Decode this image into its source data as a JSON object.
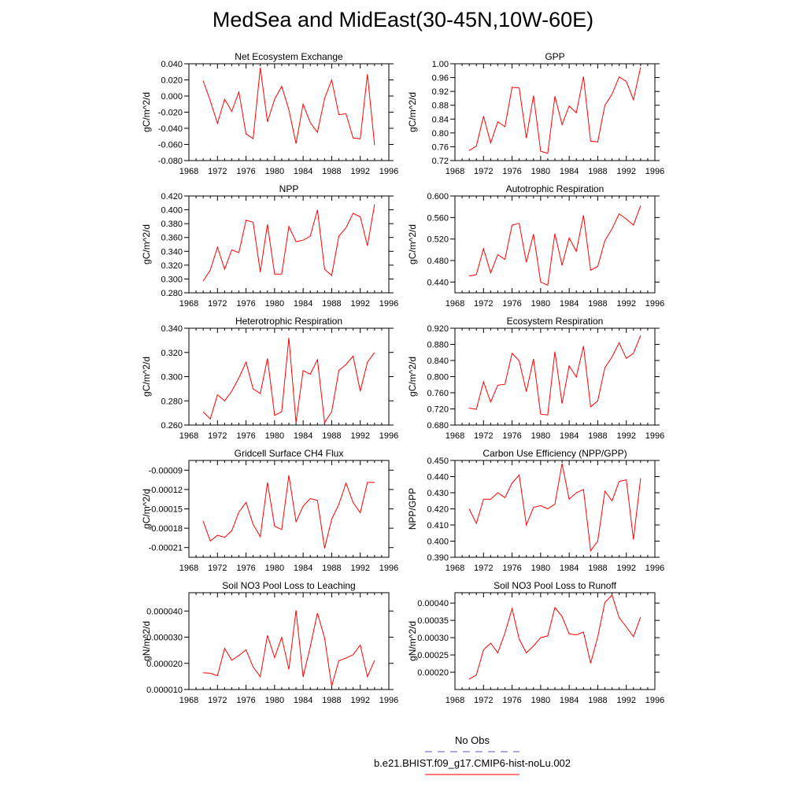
{
  "figure": {
    "title": "MedSea and MidEast(30-45N,10W-60E)",
    "legend": {
      "obs_label": "No Obs",
      "obs_color": "#5555cc",
      "model_label": "b.e21.BHIST.f09_g17.CMIP6-hist-noLu.002",
      "model_color": "#ff0000"
    }
  },
  "chart_data": [
    {
      "type": "line",
      "title": "Net Ecosystem Exchange",
      "ylabel": "gC/m^2/d",
      "xlim": [
        1968,
        1996
      ],
      "xticks": [
        1968,
        1972,
        1976,
        1980,
        1984,
        1988,
        1992,
        1996
      ],
      "xtick_labels": [
        "1968",
        "1972",
        "1976",
        "1980",
        "1984",
        "1988",
        "1992",
        "1996"
      ],
      "ylim": [
        -0.08,
        0.04
      ],
      "yticks": [
        -0.08,
        -0.06,
        -0.04,
        -0.02,
        0.0,
        0.02,
        0.04
      ],
      "ytick_labels": [
        "-0.080",
        "-0.060",
        "-0.040",
        "-0.020",
        "0.000",
        "0.020",
        "0.040"
      ],
      "x": [
        1970,
        1971,
        1972,
        1973,
        1974,
        1975,
        1976,
        1977,
        1978,
        1979,
        1980,
        1981,
        1982,
        1983,
        1984,
        1985,
        1986,
        1987,
        1988,
        1989,
        1990,
        1991,
        1992,
        1993,
        1994
      ],
      "series": [
        {
          "values": [
            0.019,
            -0.006,
            -0.034,
            -0.004,
            -0.019,
            0.005,
            -0.047,
            -0.053,
            0.035,
            -0.032,
            -0.004,
            0.012,
            -0.017,
            -0.059,
            -0.01,
            -0.033,
            -0.045,
            -0.003,
            0.02,
            -0.023,
            -0.022,
            -0.052,
            -0.053,
            0.027,
            -0.061
          ]
        }
      ]
    },
    {
      "type": "line",
      "title": "GPP",
      "ylabel": "gC/m^2/d",
      "xlim": [
        1968,
        1996
      ],
      "xticks": [
        1968,
        1972,
        1976,
        1980,
        1984,
        1988,
        1992,
        1996
      ],
      "xtick_labels": [
        "1968",
        "1972",
        "1976",
        "1980",
        "1984",
        "1988",
        "1992",
        "1996"
      ],
      "ylim": [
        0.72,
        1.0
      ],
      "yticks": [
        0.72,
        0.76,
        0.8,
        0.84,
        0.88,
        0.92,
        0.96,
        1.0
      ],
      "ytick_labels": [
        "0.72",
        "0.76",
        "0.80",
        "0.84",
        "0.88",
        "0.92",
        "0.96",
        "1.00"
      ],
      "x": [
        1970,
        1971,
        1972,
        1973,
        1974,
        1975,
        1976,
        1977,
        1978,
        1979,
        1980,
        1981,
        1982,
        1983,
        1984,
        1985,
        1986,
        1987,
        1988,
        1989,
        1990,
        1991,
        1992,
        1993,
        1994
      ],
      "series": [
        {
          "values": [
            0.749,
            0.762,
            0.848,
            0.771,
            0.832,
            0.818,
            0.932,
            0.93,
            0.785,
            0.908,
            0.747,
            0.741,
            0.906,
            0.824,
            0.878,
            0.858,
            0.963,
            0.776,
            0.774,
            0.88,
            0.912,
            0.962,
            0.949,
            0.896,
            0.99
          ]
        }
      ]
    },
    {
      "type": "line",
      "title": "NPP",
      "ylabel": "gC/m^2/d",
      "xlim": [
        1968,
        1996
      ],
      "xticks": [
        1968,
        1972,
        1976,
        1980,
        1984,
        1988,
        1992,
        1996
      ],
      "xtick_labels": [
        "1968",
        "1972",
        "1976",
        "1980",
        "1984",
        "1988",
        "1992",
        "1996"
      ],
      "ylim": [
        0.28,
        0.42
      ],
      "yticks": [
        0.28,
        0.3,
        0.32,
        0.34,
        0.36,
        0.38,
        0.4,
        0.42
      ],
      "ytick_labels": [
        "0.280",
        "0.300",
        "0.320",
        "0.340",
        "0.360",
        "0.380",
        "0.400",
        "0.420"
      ],
      "x": [
        1970,
        1971,
        1972,
        1973,
        1974,
        1975,
        1976,
        1977,
        1978,
        1979,
        1980,
        1981,
        1982,
        1983,
        1984,
        1985,
        1986,
        1987,
        1988,
        1989,
        1990,
        1991,
        1992,
        1993,
        1994
      ],
      "series": [
        {
          "values": [
            0.297,
            0.313,
            0.346,
            0.314,
            0.342,
            0.338,
            0.385,
            0.382,
            0.31,
            0.379,
            0.307,
            0.307,
            0.376,
            0.354,
            0.356,
            0.362,
            0.4,
            0.314,
            0.305,
            0.362,
            0.374,
            0.395,
            0.39,
            0.348,
            0.408
          ]
        }
      ]
    },
    {
      "type": "line",
      "title": "Autotrophic Respiration",
      "ylabel": "gC/m^2/d",
      "xlim": [
        1968,
        1996
      ],
      "xticks": [
        1968,
        1972,
        1976,
        1980,
        1984,
        1988,
        1992,
        1996
      ],
      "xtick_labels": [
        "1968",
        "1972",
        "1976",
        "1980",
        "1984",
        "1988",
        "1992",
        "1996"
      ],
      "ylim": [
        0.42,
        0.6
      ],
      "yticks": [
        0.44,
        0.48,
        0.52,
        0.56,
        0.6
      ],
      "ytick_labels": [
        "0.440",
        "0.480",
        "0.520",
        "0.560",
        "0.600"
      ],
      "x": [
        1970,
        1971,
        1972,
        1973,
        1974,
        1975,
        1976,
        1977,
        1978,
        1979,
        1980,
        1981,
        1982,
        1983,
        1984,
        1985,
        1986,
        1987,
        1988,
        1989,
        1990,
        1991,
        1992,
        1993,
        1994
      ],
      "series": [
        {
          "values": [
            0.451,
            0.454,
            0.502,
            0.457,
            0.491,
            0.482,
            0.546,
            0.549,
            0.477,
            0.529,
            0.44,
            0.434,
            0.53,
            0.471,
            0.522,
            0.497,
            0.564,
            0.462,
            0.469,
            0.517,
            0.539,
            0.567,
            0.557,
            0.546,
            0.582
          ]
        }
      ]
    },
    {
      "type": "line",
      "title": "Heterotrophic Respiration",
      "ylabel": "gC/m^2/d",
      "xlim": [
        1968,
        1996
      ],
      "xticks": [
        1968,
        1972,
        1976,
        1980,
        1984,
        1988,
        1992,
        1996
      ],
      "xtick_labels": [
        "1968",
        "1972",
        "1976",
        "1980",
        "1984",
        "1988",
        "1992",
        "1996"
      ],
      "ylim": [
        0.26,
        0.34
      ],
      "yticks": [
        0.26,
        0.28,
        0.3,
        0.32,
        0.34
      ],
      "ytick_labels": [
        "0.260",
        "0.280",
        "0.300",
        "0.320",
        "0.340"
      ],
      "x": [
        1970,
        1971,
        1972,
        1973,
        1974,
        1975,
        1976,
        1977,
        1978,
        1979,
        1980,
        1981,
        1982,
        1983,
        1984,
        1985,
        1986,
        1987,
        1988,
        1989,
        1990,
        1991,
        1992,
        1993,
        1994
      ],
      "series": [
        {
          "values": [
            0.271,
            0.265,
            0.285,
            0.28,
            0.288,
            0.299,
            0.312,
            0.29,
            0.286,
            0.315,
            0.268,
            0.271,
            0.332,
            0.262,
            0.305,
            0.302,
            0.314,
            0.262,
            0.271,
            0.305,
            0.31,
            0.317,
            0.288,
            0.312,
            0.32
          ]
        }
      ]
    },
    {
      "type": "line",
      "title": "Ecosystem Respiration",
      "ylabel": "gC/m^2/d",
      "xlim": [
        1968,
        1996
      ],
      "xticks": [
        1968,
        1972,
        1976,
        1980,
        1984,
        1988,
        1992,
        1996
      ],
      "xtick_labels": [
        "1968",
        "1972",
        "1976",
        "1980",
        "1984",
        "1988",
        "1992",
        "1996"
      ],
      "ylim": [
        0.68,
        0.92
      ],
      "yticks": [
        0.68,
        0.72,
        0.76,
        0.8,
        0.84,
        0.88,
        0.92
      ],
      "ytick_labels": [
        "0.680",
        "0.720",
        "0.760",
        "0.800",
        "0.840",
        "0.880",
        "0.920"
      ],
      "x": [
        1970,
        1971,
        1972,
        1973,
        1974,
        1975,
        1976,
        1977,
        1978,
        1979,
        1980,
        1981,
        1982,
        1983,
        1984,
        1985,
        1986,
        1987,
        1988,
        1989,
        1990,
        1991,
        1992,
        1993,
        1994
      ],
      "series": [
        {
          "values": [
            0.722,
            0.719,
            0.787,
            0.737,
            0.779,
            0.781,
            0.858,
            0.839,
            0.763,
            0.844,
            0.707,
            0.705,
            0.862,
            0.733,
            0.827,
            0.799,
            0.876,
            0.725,
            0.74,
            0.822,
            0.849,
            0.884,
            0.845,
            0.858,
            0.902
          ]
        }
      ]
    },
    {
      "type": "line",
      "title": "Gridcell Surface CH4 Flux",
      "ylabel": "gC/m^2/d",
      "xlim": [
        1968,
        1996
      ],
      "xticks": [
        1968,
        1972,
        1976,
        1980,
        1984,
        1988,
        1992,
        1996
      ],
      "xtick_labels": [
        "1968",
        "1972",
        "1976",
        "1980",
        "1984",
        "1988",
        "1992",
        "1996"
      ],
      "ylim": [
        -0.000225,
        -7.5e-05
      ],
      "yticks": [
        -0.00021,
        -0.00018,
        -0.00015,
        -0.00012,
        -9e-05
      ],
      "ytick_labels": [
        "-0.00021",
        "-0.00018",
        "-0.00015",
        "-0.00012",
        "-0.00009"
      ],
      "x": [
        1970,
        1971,
        1972,
        1973,
        1974,
        1975,
        1976,
        1977,
        1978,
        1979,
        1980,
        1981,
        1982,
        1983,
        1984,
        1985,
        1986,
        1987,
        1988,
        1989,
        1990,
        1991,
        1992,
        1993,
        1994
      ],
      "series": [
        {
          "values": [
            -0.000169,
            -0.0002,
            -0.000191,
            -0.000194,
            -0.000184,
            -0.000155,
            -0.00014,
            -0.000174,
            -0.000193,
            -0.000109,
            -0.000177,
            -0.000182,
            -9.8e-05,
            -0.00017,
            -0.000146,
            -0.000134,
            -0.000137,
            -0.000211,
            -0.000166,
            -0.000143,
            -0.00011,
            -0.00014,
            -0.000156,
            -0.000109,
            -0.000109
          ]
        }
      ]
    },
    {
      "type": "line",
      "title": "Carbon Use Efficiency (NPP/GPP)",
      "ylabel": "NPP/GPP",
      "xlim": [
        1968,
        1996
      ],
      "xticks": [
        1968,
        1972,
        1976,
        1980,
        1984,
        1988,
        1992,
        1996
      ],
      "xtick_labels": [
        "1968",
        "1972",
        "1976",
        "1980",
        "1984",
        "1988",
        "1992",
        "1996"
      ],
      "ylim": [
        0.39,
        0.45
      ],
      "yticks": [
        0.39,
        0.4,
        0.41,
        0.42,
        0.43,
        0.44,
        0.45
      ],
      "ytick_labels": [
        "0.390",
        "0.400",
        "0.410",
        "0.420",
        "0.430",
        "0.440",
        "0.450"
      ],
      "x": [
        1970,
        1971,
        1972,
        1973,
        1974,
        1975,
        1976,
        1977,
        1978,
        1979,
        1980,
        1981,
        1982,
        1983,
        1984,
        1985,
        1986,
        1987,
        1988,
        1989,
        1990,
        1991,
        1992,
        1993,
        1994
      ],
      "series": [
        {
          "values": [
            0.42,
            0.411,
            0.426,
            0.426,
            0.43,
            0.427,
            0.436,
            0.441,
            0.41,
            0.421,
            0.422,
            0.42,
            0.423,
            0.448,
            0.426,
            0.43,
            0.432,
            0.394,
            0.4,
            0.431,
            0.425,
            0.437,
            0.438,
            0.401,
            0.439
          ]
        }
      ]
    },
    {
      "type": "line",
      "title": "Soil NO3 Pool Loss to Leaching",
      "ylabel": "gN/m^2/d",
      "xlim": [
        1968,
        1996
      ],
      "xticks": [
        1968,
        1972,
        1976,
        1980,
        1984,
        1988,
        1992,
        1996
      ],
      "xtick_labels": [
        "1968",
        "1972",
        "1976",
        "1980",
        "1984",
        "1988",
        "1992",
        "1996"
      ],
      "ylim": [
        1e-05,
        4.7e-05
      ],
      "yticks": [
        1e-05,
        2e-05,
        3e-05,
        4e-05
      ],
      "ytick_labels": [
        "0.000010",
        "0.000020",
        "0.000030",
        "0.000040"
      ],
      "x": [
        1970,
        1971,
        1972,
        1973,
        1974,
        1975,
        1976,
        1977,
        1978,
        1979,
        1980,
        1981,
        1982,
        1983,
        1984,
        1985,
        1986,
        1987,
        1988,
        1989,
        1990,
        1991,
        1992,
        1993,
        1994
      ],
      "series": [
        {
          "values": [
            1.64e-05,
            1.62e-05,
            1.53e-05,
            2.57e-05,
            2.12e-05,
            2.3e-05,
            2.52e-05,
            1.86e-05,
            1.49e-05,
            3.07e-05,
            2.22e-05,
            2.99e-05,
            1.77e-05,
            4.03e-05,
            1.48e-05,
            2.64e-05,
            3.92e-05,
            2.97e-05,
            1.13e-05,
            2.1e-05,
            2.2e-05,
            2.33e-05,
            2.7e-05,
            1.49e-05,
            2.11e-05
          ]
        }
      ]
    },
    {
      "type": "line",
      "title": "Soil NO3 Pool Loss to Runoff",
      "ylabel": "gN/m^2/d",
      "xlim": [
        1968,
        1996
      ],
      "xticks": [
        1968,
        1972,
        1976,
        1980,
        1984,
        1988,
        1992,
        1996
      ],
      "xtick_labels": [
        "1968",
        "1972",
        "1976",
        "1980",
        "1984",
        "1988",
        "1992",
        "1996"
      ],
      "ylim": [
        0.00015,
        0.00043
      ],
      "yticks": [
        0.0002,
        0.00025,
        0.0003,
        0.00035,
        0.0004
      ],
      "ytick_labels": [
        "0.00020",
        "0.00025",
        "0.00030",
        "0.00035",
        "0.00040"
      ],
      "x": [
        1970,
        1971,
        1972,
        1973,
        1974,
        1975,
        1976,
        1977,
        1978,
        1979,
        1980,
        1981,
        1982,
        1983,
        1984,
        1985,
        1986,
        1987,
        1988,
        1989,
        1990,
        1991,
        1992,
        1993,
        1994
      ],
      "series": [
        {
          "values": [
            0.00018,
            0.000192,
            0.000265,
            0.000284,
            0.000256,
            0.000313,
            0.000384,
            0.000296,
            0.000256,
            0.000276,
            0.0003,
            0.000305,
            0.000387,
            0.000361,
            0.000311,
            0.000308,
            0.000316,
            0.000226,
            0.000302,
            0.000402,
            0.000423,
            0.000358,
            0.000331,
            0.000303,
            0.00036
          ]
        }
      ]
    }
  ]
}
